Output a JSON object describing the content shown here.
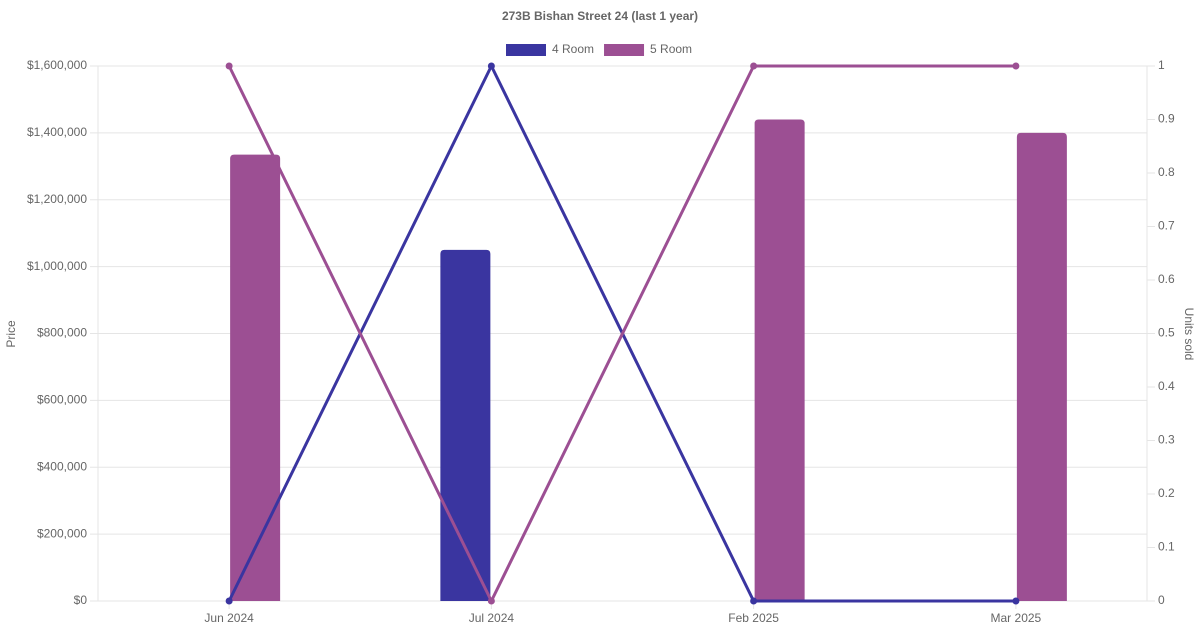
{
  "chart_data": {
    "type": "bar-line",
    "title": "273B Bishan Street 24 (last 1 year)",
    "y_label": "Price",
    "y2_label": "Units sold",
    "categories": [
      "Jun 2024",
      "Jul 2024",
      "Feb 2025",
      "Mar 2025"
    ],
    "series": [
      {
        "name": "4 Room",
        "color": "#3a35a0",
        "values": [
          null,
          1050000,
          null,
          null
        ],
        "units": [
          0,
          1,
          0,
          0
        ]
      },
      {
        "name": "5 Room",
        "color": "#9c4f93",
        "values": [
          1335000,
          null,
          1440000,
          1400000
        ],
        "units": [
          1,
          0,
          1,
          1
        ]
      }
    ],
    "ylim": [
      0,
      1600000
    ],
    "yticks": [
      {
        "value": 0,
        "label": "$0"
      },
      {
        "value": 200000,
        "label": "$200,000"
      },
      {
        "value": 400000,
        "label": "$400,000"
      },
      {
        "value": 600000,
        "label": "$600,000"
      },
      {
        "value": 800000,
        "label": "$800,000"
      },
      {
        "value": 1000000,
        "label": "$1,000,000"
      },
      {
        "value": 1200000,
        "label": "$1,200,000"
      },
      {
        "value": 1400000,
        "label": "$1,400,000"
      },
      {
        "value": 1600000,
        "label": "$1,600,000"
      }
    ],
    "y2lim": [
      0,
      1
    ],
    "y2ticks": [
      0,
      0.1,
      0.2,
      0.3,
      0.4,
      0.5,
      0.6,
      0.7,
      0.8,
      0.9,
      1
    ],
    "grid": true
  }
}
